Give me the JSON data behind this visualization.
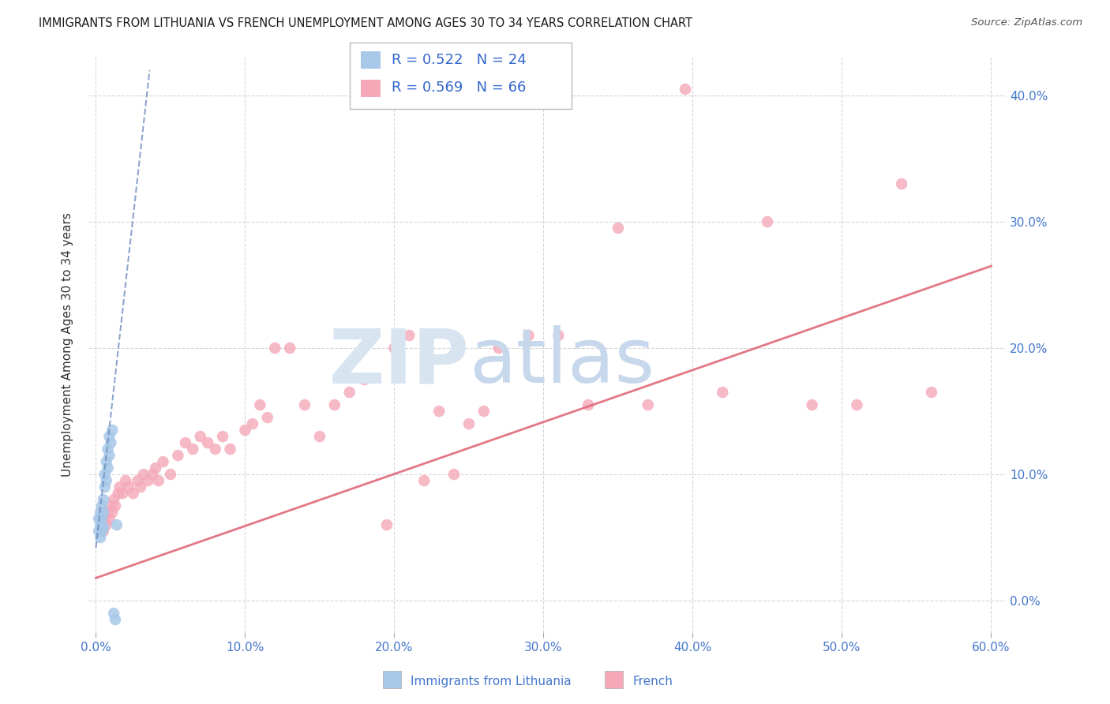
{
  "title": "IMMIGRANTS FROM LITHUANIA VS FRENCH UNEMPLOYMENT AMONG AGES 30 TO 34 YEARS CORRELATION CHART",
  "source": "Source: ZipAtlas.com",
  "xlabel_blue": "Immigrants from Lithuania",
  "xlabel_pink": "French",
  "ylabel": "Unemployment Among Ages 30 to 34 years",
  "xlim": [
    -0.005,
    0.61
  ],
  "ylim": [
    -0.025,
    0.43
  ],
  "yticks": [
    0.0,
    0.1,
    0.2,
    0.3,
    0.4
  ],
  "xticks": [
    0.0,
    0.1,
    0.2,
    0.3,
    0.4,
    0.5,
    0.6
  ],
  "legend_blue_R": "0.522",
  "legend_blue_N": "24",
  "legend_pink_R": "0.569",
  "legend_pink_N": "66",
  "blue_color": "#a8c8e8",
  "pink_color": "#f4a8b8",
  "blue_line_color": "#6688bb",
  "pink_line_color": "#e06878",
  "blue_scatter_x": [
    0.002,
    0.002,
    0.003,
    0.003,
    0.003,
    0.004,
    0.004,
    0.004,
    0.005,
    0.005,
    0.005,
    0.006,
    0.006,
    0.007,
    0.007,
    0.008,
    0.008,
    0.009,
    0.009,
    0.01,
    0.011,
    0.012,
    0.013,
    0.014
  ],
  "blue_scatter_y": [
    0.055,
    0.065,
    0.05,
    0.06,
    0.07,
    0.055,
    0.065,
    0.075,
    0.058,
    0.07,
    0.08,
    0.09,
    0.1,
    0.095,
    0.11,
    0.105,
    0.12,
    0.115,
    0.13,
    0.125,
    0.135,
    -0.01,
    -0.015,
    0.06
  ],
  "pink_scatter_x": [
    0.003,
    0.004,
    0.005,
    0.006,
    0.007,
    0.008,
    0.009,
    0.01,
    0.011,
    0.012,
    0.013,
    0.015,
    0.016,
    0.018,
    0.02,
    0.022,
    0.025,
    0.028,
    0.03,
    0.032,
    0.035,
    0.038,
    0.04,
    0.042,
    0.045,
    0.05,
    0.055,
    0.06,
    0.065,
    0.07,
    0.075,
    0.08,
    0.085,
    0.09,
    0.1,
    0.105,
    0.11,
    0.115,
    0.12,
    0.13,
    0.14,
    0.15,
    0.16,
    0.17,
    0.18,
    0.195,
    0.2,
    0.21,
    0.22,
    0.23,
    0.24,
    0.25,
    0.26,
    0.27,
    0.29,
    0.31,
    0.33,
    0.35,
    0.37,
    0.395,
    0.42,
    0.45,
    0.48,
    0.51,
    0.54,
    0.56
  ],
  "pink_scatter_y": [
    0.065,
    0.06,
    0.055,
    0.065,
    0.06,
    0.07,
    0.065,
    0.075,
    0.07,
    0.08,
    0.075,
    0.085,
    0.09,
    0.085,
    0.095,
    0.09,
    0.085,
    0.095,
    0.09,
    0.1,
    0.095,
    0.1,
    0.105,
    0.095,
    0.11,
    0.1,
    0.115,
    0.125,
    0.12,
    0.13,
    0.125,
    0.12,
    0.13,
    0.12,
    0.135,
    0.14,
    0.155,
    0.145,
    0.2,
    0.2,
    0.155,
    0.13,
    0.155,
    0.165,
    0.175,
    0.06,
    0.2,
    0.21,
    0.095,
    0.15,
    0.1,
    0.14,
    0.15,
    0.2,
    0.21,
    0.21,
    0.155,
    0.295,
    0.155,
    0.405,
    0.165,
    0.3,
    0.155,
    0.155,
    0.33,
    0.165
  ],
  "blue_trend_x": [
    0.0,
    0.036
  ],
  "blue_trend_y": [
    0.042,
    0.42
  ],
  "pink_trend_x": [
    0.0,
    0.6
  ],
  "pink_trend_y": [
    0.018,
    0.265
  ]
}
